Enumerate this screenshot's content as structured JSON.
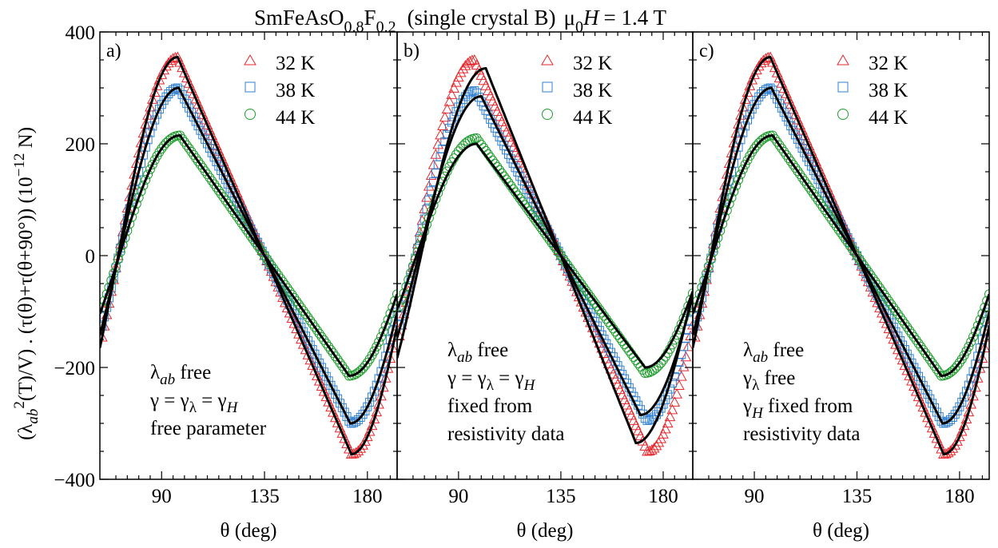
{
  "title": {
    "material": "SmFeAsO",
    "sub1": "0.8",
    "f": "F",
    "sub2": "0.2",
    "sample": "(single crystal B)",
    "mu": "μ",
    "mu_sub": "0",
    "field_var": "H",
    "field_val": "= 1.4 T"
  },
  "y_axis_label": {
    "paren_open": "(λ",
    "ab": "ab",
    "sq": "2",
    "rest": "(T)/V) . (τ(θ)+τ(θ+90°))  (10",
    "exp": "−12",
    "unit": " N)"
  },
  "x_axis_label": "θ (deg)",
  "y_ticks": [
    "400",
    "200",
    "0",
    "−200",
    "−400"
  ],
  "x_ticks": [
    "90",
    "135",
    "180"
  ],
  "legend": [
    "32 K",
    "38 K",
    "44 K"
  ],
  "colors": {
    "32 K": "#e8262b",
    "38 K": "#2f7fd0",
    "44 K": "#1f9e2e",
    "fit": "#000000"
  },
  "panels": [
    {
      "label": "a)",
      "annotation": [
        {
          "parts": [
            {
              "t": "λ"
            },
            {
              "t": "ab",
              "sub": true,
              "it": true
            },
            {
              "t": " free"
            }
          ]
        },
        {
          "parts": [
            {
              "t": "γ = γ"
            },
            {
              "t": "λ",
              "sub": true
            },
            {
              "t": " = γ"
            },
            {
              "t": "H",
              "sub": true,
              "it": true
            }
          ]
        },
        {
          "parts": [
            {
              "t": "free parameter"
            }
          ]
        }
      ]
    },
    {
      "label": "b)",
      "annotation": [
        {
          "parts": [
            {
              "t": "λ"
            },
            {
              "t": "ab",
              "sub": true,
              "it": true
            },
            {
              "t": " free"
            }
          ]
        },
        {
          "parts": [
            {
              "t": "γ = γ"
            },
            {
              "t": "λ",
              "sub": true
            },
            {
              "t": " = γ"
            },
            {
              "t": "H",
              "sub": true,
              "it": true
            }
          ]
        },
        {
          "parts": [
            {
              "t": "fixed from"
            }
          ]
        },
        {
          "parts": [
            {
              "t": "resistivity data"
            }
          ]
        }
      ]
    },
    {
      "label": "c)",
      "annotation": [
        {
          "parts": [
            {
              "t": "λ"
            },
            {
              "t": "ab",
              "sub": true,
              "it": true
            },
            {
              "t": " free"
            }
          ]
        },
        {
          "parts": [
            {
              "t": "γ"
            },
            {
              "t": "λ",
              "sub": true
            },
            {
              "t": " free"
            }
          ]
        },
        {
          "parts": [
            {
              "t": "γ"
            },
            {
              "t": "H",
              "sub": true,
              "it": true
            },
            {
              "t": " fixed from"
            }
          ]
        },
        {
          "parts": [
            {
              "t": "resistivity data"
            }
          ]
        }
      ]
    }
  ],
  "chart_data": {
    "type": "scatter",
    "xlim": [
      63,
      193
    ],
    "ylim": [
      -400,
      400
    ],
    "x_ticks": [
      90,
      135,
      180
    ],
    "y_ticks": [
      -400,
      -200,
      0,
      200,
      400
    ],
    "legend_position": "top-right",
    "series_params": {
      "a": {
        "data": [
          {
            "name": "32 K",
            "amp": 355,
            "peak_offset": 7,
            "shape": 0.5
          },
          {
            "name": "38 K",
            "amp": 300,
            "peak_offset": 7.5,
            "shape": 0.5
          },
          {
            "name": "44 K",
            "amp": 215,
            "peak_offset": 8,
            "shape": 0.5
          }
        ],
        "fit": [
          {
            "amp": 355,
            "peak_offset": 7
          },
          {
            "amp": 300,
            "peak_offset": 7.5
          },
          {
            "amp": 215,
            "peak_offset": 8
          }
        ]
      },
      "b": {
        "data": [
          {
            "name": "32 K",
            "amp": 350,
            "peak_offset": 7
          },
          {
            "name": "38 K",
            "amp": 295,
            "peak_offset": 7.5
          },
          {
            "name": "44 K",
            "amp": 210,
            "peak_offset": 8
          }
        ],
        "fit": [
          {
            "amp": 335,
            "peak_offset": 12
          },
          {
            "amp": 285,
            "peak_offset": 10
          },
          {
            "amp": 200,
            "peak_offset": 8
          }
        ]
      },
      "c": {
        "data": [
          {
            "name": "32 K",
            "amp": 355,
            "peak_offset": 7
          },
          {
            "name": "38 K",
            "amp": 300,
            "peak_offset": 7.5
          },
          {
            "name": "44 K",
            "amp": 215,
            "peak_offset": 8
          }
        ],
        "fit": [
          {
            "amp": 355,
            "peak_offset": 7
          },
          {
            "amp": 300,
            "peak_offset": 7.5
          },
          {
            "amp": 215,
            "peak_offset": 8
          }
        ]
      }
    }
  }
}
